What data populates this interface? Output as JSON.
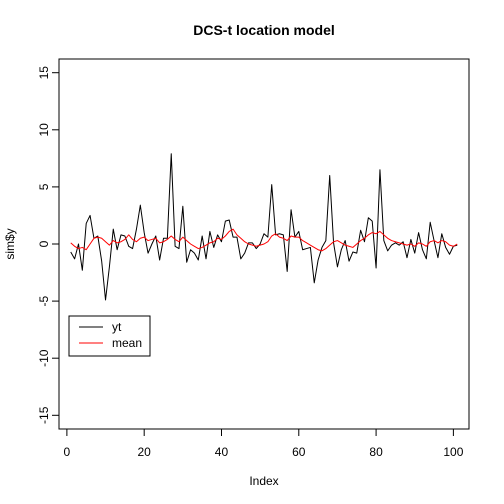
{
  "chart_data": {
    "type": "line",
    "title": "DCS-t location model",
    "xlabel": "Index",
    "ylabel": "sim$y",
    "xlim": [
      -2.04,
      104.04
    ],
    "ylim": [
      -16.2,
      16.2
    ],
    "xticks": [
      0,
      20,
      40,
      60,
      80,
      100
    ],
    "yticks": [
      -15,
      -10,
      -5,
      0,
      5,
      10,
      15
    ],
    "xtick_labels": [
      "0",
      "20",
      "40",
      "60",
      "80",
      "100"
    ],
    "ytick_labels": [
      "-15",
      "-10",
      "-5",
      "0",
      "5",
      "10",
      "15"
    ],
    "grid": false,
    "legend_position": "bottom-left",
    "x": [
      1,
      2,
      3,
      4,
      5,
      6,
      7,
      8,
      9,
      10,
      11,
      12,
      13,
      14,
      15,
      16,
      17,
      18,
      19,
      20,
      21,
      22,
      23,
      24,
      25,
      26,
      27,
      28,
      29,
      30,
      31,
      32,
      33,
      34,
      35,
      36,
      37,
      38,
      39,
      40,
      41,
      42,
      43,
      44,
      45,
      46,
      47,
      48,
      49,
      50,
      51,
      52,
      53,
      54,
      55,
      56,
      57,
      58,
      59,
      60,
      61,
      62,
      63,
      64,
      65,
      66,
      67,
      68,
      69,
      70,
      71,
      72,
      73,
      74,
      75,
      76,
      77,
      78,
      79,
      80,
      81,
      82,
      83,
      84,
      85,
      86,
      87,
      88,
      89,
      90,
      91,
      92,
      93,
      94,
      95,
      96,
      97,
      98,
      99,
      100,
      101
    ],
    "series": [
      {
        "name": "yt",
        "color": "#000000",
        "values": [
          -0.7,
          -1.3,
          0.0,
          -2.3,
          1.8,
          2.5,
          0.5,
          0.7,
          -1.5,
          -4.9,
          -2.0,
          1.3,
          -0.5,
          0.8,
          0.7,
          -0.2,
          -0.4,
          1.3,
          3.4,
          1.0,
          -0.8,
          0.0,
          0.7,
          -1.4,
          0.5,
          0.5,
          7.9,
          -0.2,
          -0.4,
          3.3,
          -1.6,
          -0.5,
          -0.8,
          -1.4,
          0.7,
          -1.3,
          1.1,
          -0.3,
          0.8,
          0.2,
          2.0,
          2.1,
          0.6,
          0.6,
          -1.3,
          -0.8,
          0.1,
          0.1,
          -0.4,
          0.0,
          0.9,
          0.6,
          5.2,
          0.8,
          0.9,
          0.8,
          -2.4,
          3.0,
          0.6,
          1.1,
          -0.5,
          -0.4,
          -0.3,
          -3.4,
          -1.4,
          -0.3,
          0.3,
          6.0,
          0.1,
          -2.0,
          -0.5,
          0.3,
          -1.5,
          -0.7,
          -0.8,
          1.2,
          0.2,
          2.3,
          2.0,
          -2.1,
          6.5,
          0.3,
          -0.6,
          -0.1,
          0.1,
          -0.1,
          0.2,
          -1.2,
          0.4,
          -0.8,
          1.0,
          -0.5,
          -1.3,
          1.9,
          0.3,
          -1.2,
          0.9,
          -0.3,
          -0.9,
          -0.2,
          -0.1
        ]
      },
      {
        "name": "mean",
        "color": "#ff0000",
        "values": [
          0.1,
          -0.2,
          -0.4,
          -0.3,
          -0.5,
          0.0,
          0.5,
          0.6,
          0.5,
          0.2,
          -0.1,
          0.3,
          0.1,
          0.2,
          0.4,
          0.8,
          0.4,
          0.2,
          0.5,
          0.6,
          0.3,
          0.4,
          0.5,
          0.1,
          0.2,
          0.4,
          0.7,
          0.4,
          0.2,
          0.6,
          0.3,
          0.0,
          -0.2,
          -0.4,
          -0.3,
          -0.1,
          0.1,
          0.2,
          0.5,
          0.4,
          0.7,
          1.1,
          1.3,
          0.8,
          0.5,
          0.2,
          0.0,
          -0.1,
          -0.2,
          -0.1,
          0.0,
          0.2,
          0.7,
          0.9,
          0.6,
          0.5,
          0.3,
          0.7,
          0.6,
          0.6,
          0.3,
          0.1,
          -0.1,
          -0.3,
          -0.5,
          -0.6,
          -0.4,
          -0.1,
          0.2,
          0.3,
          0.1,
          -0.1,
          -0.2,
          -0.3,
          0.0,
          0.3,
          0.5,
          0.8,
          1.0,
          0.9,
          1.1,
          0.8,
          0.5,
          0.3,
          0.2,
          0.1,
          0.0,
          -0.1,
          0.0,
          -0.2,
          0.1,
          0.0,
          -0.2,
          0.2,
          0.3,
          0.1,
          0.3,
          0.2,
          -0.1,
          -0.2,
          0.0
        ]
      }
    ]
  }
}
